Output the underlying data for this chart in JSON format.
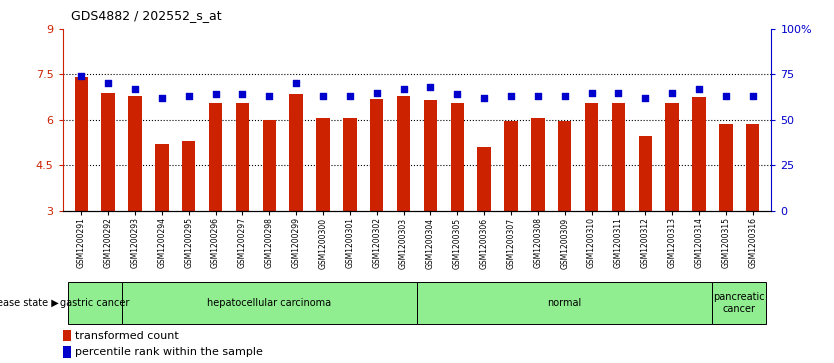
{
  "title": "GDS4882 / 202552_s_at",
  "samples": [
    "GSM1200291",
    "GSM1200292",
    "GSM1200293",
    "GSM1200294",
    "GSM1200295",
    "GSM1200296",
    "GSM1200297",
    "GSM1200298",
    "GSM1200299",
    "GSM1200300",
    "GSM1200301",
    "GSM1200302",
    "GSM1200303",
    "GSM1200304",
    "GSM1200305",
    "GSM1200306",
    "GSM1200307",
    "GSM1200308",
    "GSM1200309",
    "GSM1200310",
    "GSM1200311",
    "GSM1200312",
    "GSM1200313",
    "GSM1200314",
    "GSM1200315",
    "GSM1200316"
  ],
  "red_values": [
    7.4,
    6.9,
    6.8,
    5.2,
    5.3,
    6.55,
    6.55,
    6.0,
    6.85,
    6.05,
    6.05,
    6.7,
    6.8,
    6.65,
    6.55,
    5.1,
    5.95,
    6.05,
    5.95,
    6.55,
    6.55,
    5.45,
    6.55,
    6.75,
    5.85,
    5.85
  ],
  "blue_values": [
    74,
    70,
    67,
    62,
    63,
    64,
    64,
    63,
    70,
    63,
    63,
    65,
    67,
    68,
    64,
    62,
    63,
    63,
    63,
    65,
    65,
    62,
    65,
    67,
    63,
    63
  ],
  "ylim_left": [
    3,
    9
  ],
  "ylim_right": [
    0,
    100
  ],
  "yticks_left": [
    3,
    4.5,
    6,
    7.5,
    9
  ],
  "yticks_right": [
    0,
    25,
    50,
    75,
    100
  ],
  "ytick_labels_left": [
    "3",
    "4.5",
    "6",
    "7.5",
    "9"
  ],
  "ytick_labels_right": [
    "0",
    "25",
    "50",
    "75",
    "100%"
  ],
  "groups": [
    {
      "label": "gastric cancer",
      "start": 0,
      "end": 2
    },
    {
      "label": "hepatocellular carcinoma",
      "start": 2,
      "end": 13
    },
    {
      "label": "normal",
      "start": 13,
      "end": 24
    },
    {
      "label": "pancreatic\ncancer",
      "start": 24,
      "end": 26
    }
  ],
  "bar_color": "#CC2200",
  "dot_color": "#0000CC",
  "left_axis_color": "#CC2200",
  "right_axis_color": "#0000CC",
  "light_green": "#90EE90",
  "bg_color": "#FFFFFF"
}
